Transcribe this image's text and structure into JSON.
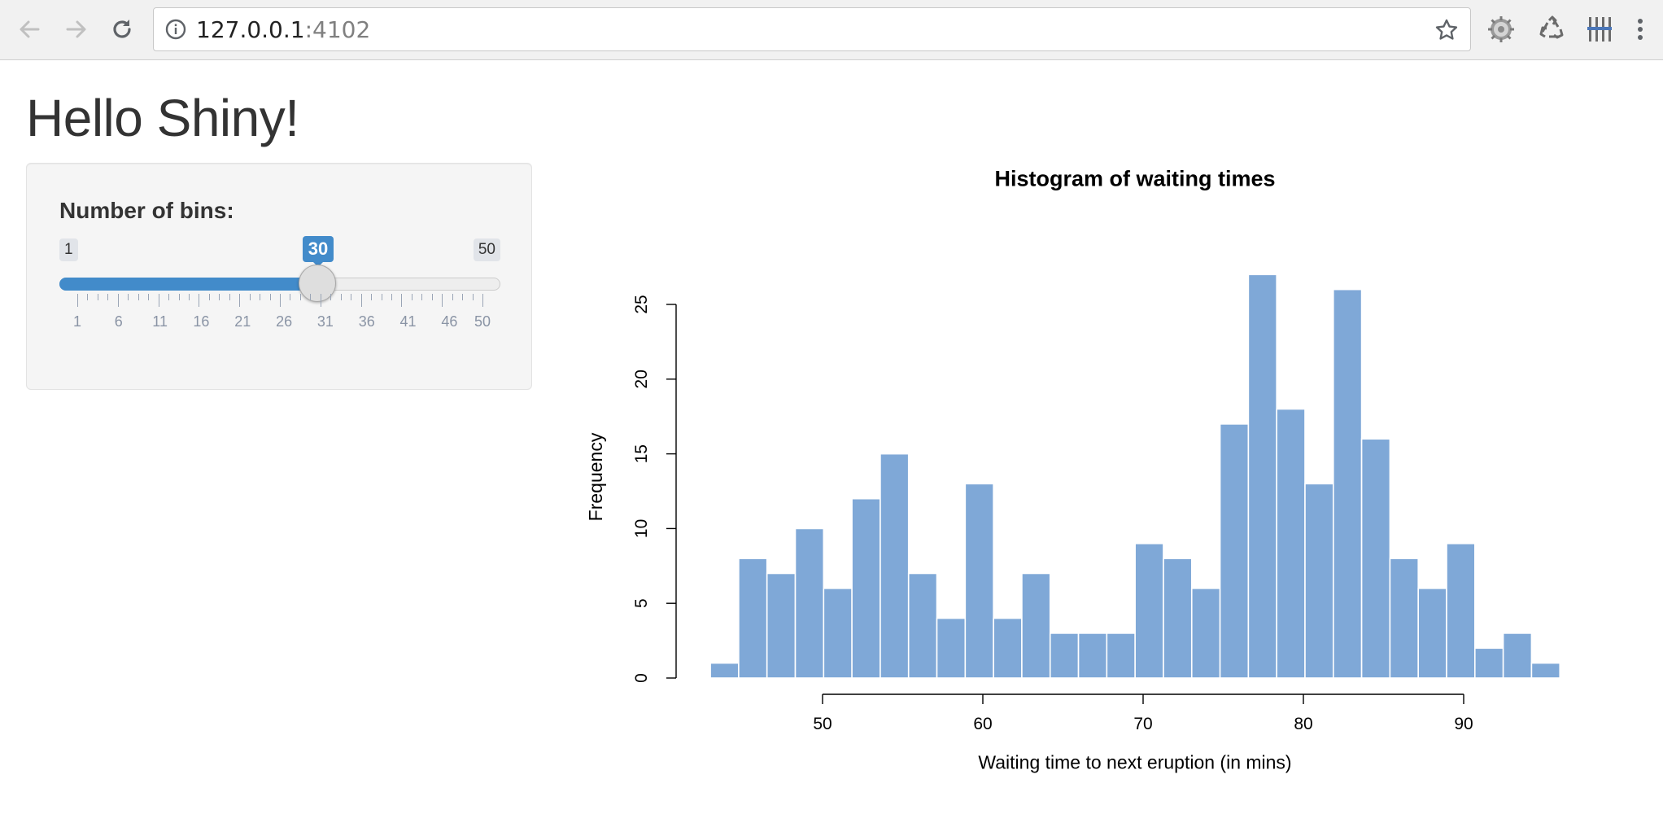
{
  "browser": {
    "url_host": "127.0.0.1",
    "url_port": ":4102",
    "icons": [
      "back-icon",
      "forward-icon",
      "reload-icon",
      "info-icon",
      "star-icon",
      "gear-extension-icon",
      "recycle-extension-icon",
      "grid-extension-icon",
      "menu-icon"
    ]
  },
  "page": {
    "title": "Hello Shiny!"
  },
  "sidebar": {
    "slider_label": "Number of bins:",
    "slider": {
      "min": 1,
      "max": 50,
      "value": 30,
      "min_label": "1",
      "max_label": "50",
      "value_label": "30",
      "grid_labels": [
        "1",
        "6",
        "11",
        "16",
        "21",
        "26",
        "31",
        "36",
        "41",
        "46",
        "50"
      ],
      "accent_color": "#428bca"
    }
  },
  "chart_data": {
    "type": "bar",
    "title": "Histogram of waiting times",
    "xlabel": "Waiting time to next eruption (in mins)",
    "ylabel": "Frequency",
    "bar_color": "#7fa8d7",
    "x_ticks": [
      50,
      60,
      70,
      80,
      90
    ],
    "y_ticks": [
      0,
      5,
      10,
      15,
      20,
      25
    ],
    "bins_start": 43.0,
    "bin_width": 1.7667,
    "values": [
      1,
      8,
      7,
      10,
      6,
      12,
      15,
      7,
      4,
      13,
      4,
      7,
      3,
      3,
      3,
      9,
      8,
      6,
      17,
      27,
      18,
      13,
      26,
      16,
      8,
      6,
      9,
      2,
      3,
      1
    ]
  }
}
